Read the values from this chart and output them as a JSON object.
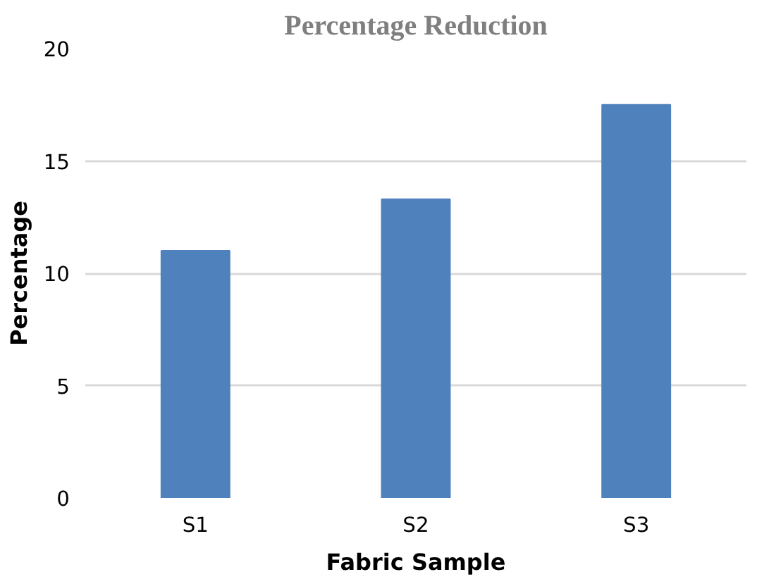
{
  "chart_data": {
    "type": "bar",
    "title": "Percentage Reduction",
    "xlabel": "Fabric Sample",
    "ylabel": "Percentage",
    "categories": [
      "S1",
      "S2",
      "S3"
    ],
    "values": [
      11.0,
      13.3,
      17.5
    ],
    "color": "#4f81bd",
    "ylim": [
      0,
      20
    ],
    "yticks": [
      0,
      5,
      10,
      15,
      20
    ],
    "grid": "y"
  }
}
